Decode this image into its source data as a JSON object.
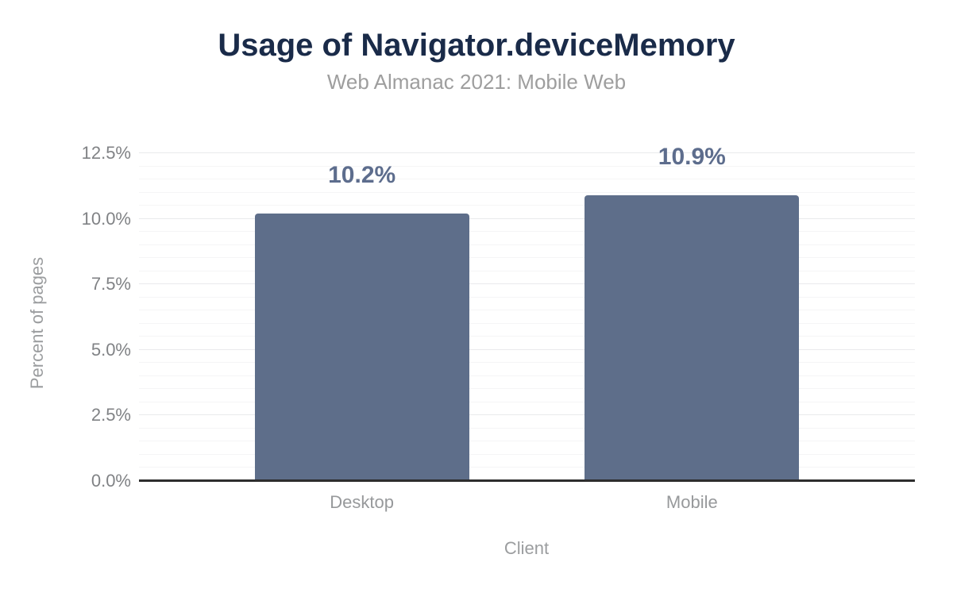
{
  "chart_data": {
    "type": "bar",
    "title": "Usage of Navigator.deviceMemory",
    "subtitle": "Web Almanac 2021: Mobile Web",
    "xlabel": "Client",
    "ylabel": "Percent of pages",
    "categories": [
      "Desktop",
      "Mobile"
    ],
    "values": [
      10.2,
      10.9
    ],
    "value_labels": [
      "10.2%",
      "10.9%"
    ],
    "ylim": [
      0,
      12.5
    ],
    "ytick_values": [
      0,
      2.5,
      5,
      7.5,
      10,
      12.5
    ],
    "ytick_labels": [
      "0.0%",
      "2.5%",
      "5.0%",
      "7.5%",
      "10.0%",
      "12.5%"
    ],
    "minor_grid_step": 0.5,
    "major_grid_step": 2.5,
    "grid": true,
    "legend_position": "none",
    "colors": {
      "bar": "#5e6e8a",
      "title": "#1a2b49",
      "subtitle": "#9e9e9e",
      "tick_label": "#808285",
      "category_label": "#97999b",
      "axis_title": "#9b9d9f",
      "value_label": "#5d6d8d",
      "axis_line": "#2d2d2d",
      "gridline_major": "#e9eaec",
      "gridline_minor": "#f5f5f6",
      "background": "#ffffff"
    }
  }
}
